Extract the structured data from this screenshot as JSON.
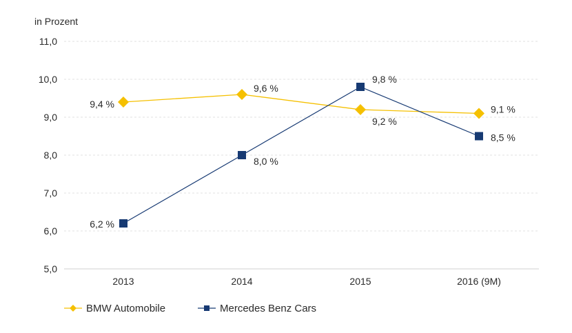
{
  "chart_data": {
    "type": "line",
    "ylabel": "in Prozent",
    "ylim": [
      5.0,
      11.0
    ],
    "yticks": [
      5.0,
      6.0,
      7.0,
      8.0,
      9.0,
      10.0,
      11.0
    ],
    "ytick_labels": [
      "5,0",
      "6,0",
      "7,0",
      "8,0",
      "9,0",
      "10,0",
      "11,0"
    ],
    "grid": "horizontal dashed",
    "legend_position": "bottom-left",
    "categories": [
      "2013",
      "2014",
      "2015",
      "2016 (9M)"
    ],
    "series": [
      {
        "name": "BMW Automobile",
        "color": "#f5c000",
        "marker": "diamond",
        "values": [
          9.4,
          9.6,
          9.2,
          9.1
        ],
        "labels": [
          "9,4 %",
          "9,6 %",
          "9,2 %",
          "9,1 %"
        ]
      },
      {
        "name": "Mercedes Benz Cars",
        "color": "#173a73",
        "marker": "square",
        "values": [
          6.2,
          8.0,
          9.8,
          8.5
        ],
        "labels": [
          "6,2 %",
          "8,0 %",
          "9,8 %",
          "8,5 %"
        ]
      }
    ]
  }
}
